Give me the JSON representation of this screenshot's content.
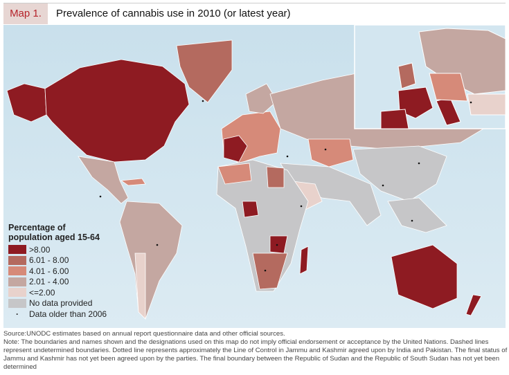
{
  "header": {
    "label": "Map 1.",
    "title": "Prevalence of cannabis use in 2010 (or latest year)"
  },
  "legend": {
    "title_line1": "Percentage of",
    "title_line2": "population aged 15-64",
    "items": [
      {
        "label": ">8.00",
        "color": "#8e1b22"
      },
      {
        "label": "6.01 - 8.00",
        "color": "#b46a5f"
      },
      {
        "label": "4.01 - 6.00",
        "color": "#d68a79"
      },
      {
        "label": "2.01 - 4.00",
        "color": "#c4a7a1"
      },
      {
        "label": "<=2.00",
        "color": "#e8d2cc"
      },
      {
        "label": "No data provided",
        "color": "#c6c6c8"
      }
    ],
    "dot_label": "Data older than 2006"
  },
  "colors": {
    "ocean": "#d3e6f0",
    "border": "#ffffff"
  },
  "notes": {
    "source": "Source:UNODC estimates based on annual report questionnaire data and other official sources.",
    "note": "Note: The boundaries and names shown and the designations used on this map do not imply official endorsement or acceptance by the United Nations. Dashed lines represent undetermined boundaries. Dotted line represents approximately the Line of Control in Jammu and Kashmir agreed upon by India and Pakistan. The final status of Jammu and Kashmir has not yet been agreed upon by the parties. The final boundary between the Republic of Sudan and the Republic of South Sudan has not yet been determined"
  }
}
